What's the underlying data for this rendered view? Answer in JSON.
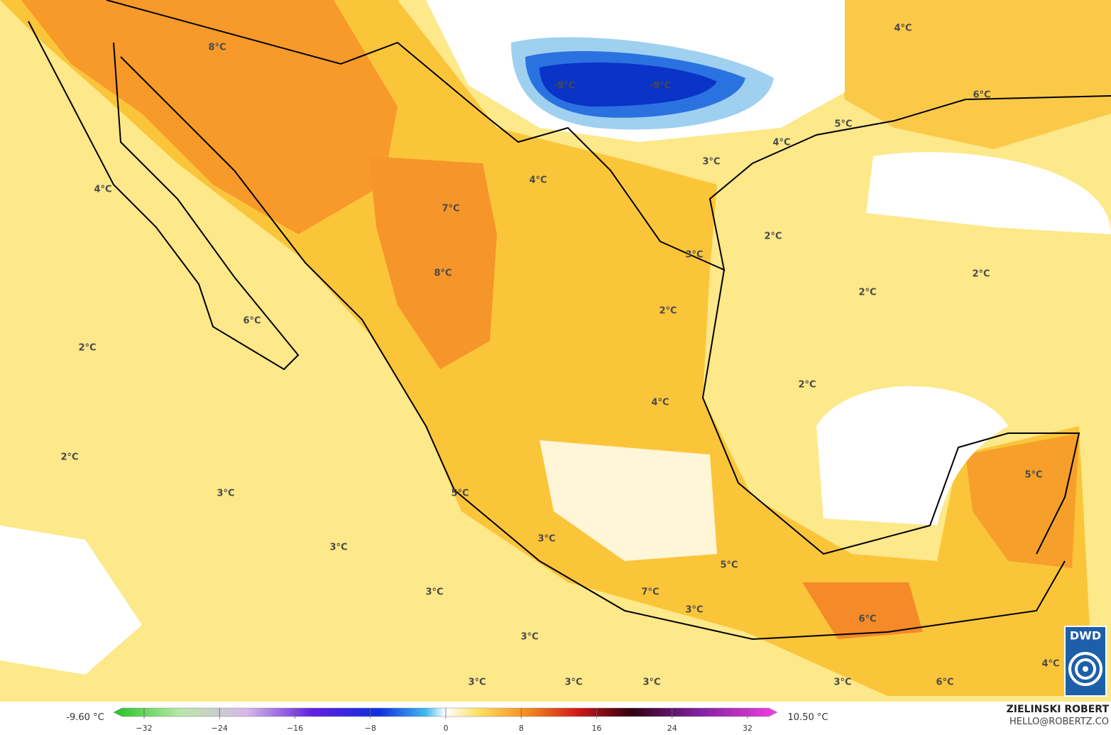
{
  "map_labels": [
    "8°C",
    "-9°C",
    "-9°C",
    "4°C",
    "6°C",
    "5°C",
    "4°C",
    "3°C",
    "4°C",
    "4°C",
    "7°C",
    "2°C",
    "3°C",
    "2°C",
    "8°C",
    "2°C",
    "2°C",
    "6°C",
    "2°C",
    "2°C",
    "4°C",
    "2°C",
    "5°C",
    "5°C",
    "3°C",
    "3°C",
    "3°C",
    "5°C",
    "3°C",
    "7°C",
    "3°C",
    "6°C",
    "3°C",
    "3°C",
    "3°C",
    "3°C",
    "3°C",
    "6°C",
    "4°C"
  ],
  "legend": {
    "min_label": "-9.60 °C",
    "max_label": "10.50 °C",
    "range": [
      -32,
      32
    ],
    "ticks": [
      {
        "value": -32,
        "label": "−32"
      },
      {
        "value": -24,
        "label": "−24"
      },
      {
        "value": -16,
        "label": "−16"
      },
      {
        "value": -8,
        "label": "−8"
      },
      0,
      8,
      16,
      24,
      32
    ]
  },
  "credits": {
    "name": "ZIELINSKI ROBERT",
    "contact": "HELLO@ROBERTZ.CO"
  },
  "logo": "DWD"
}
